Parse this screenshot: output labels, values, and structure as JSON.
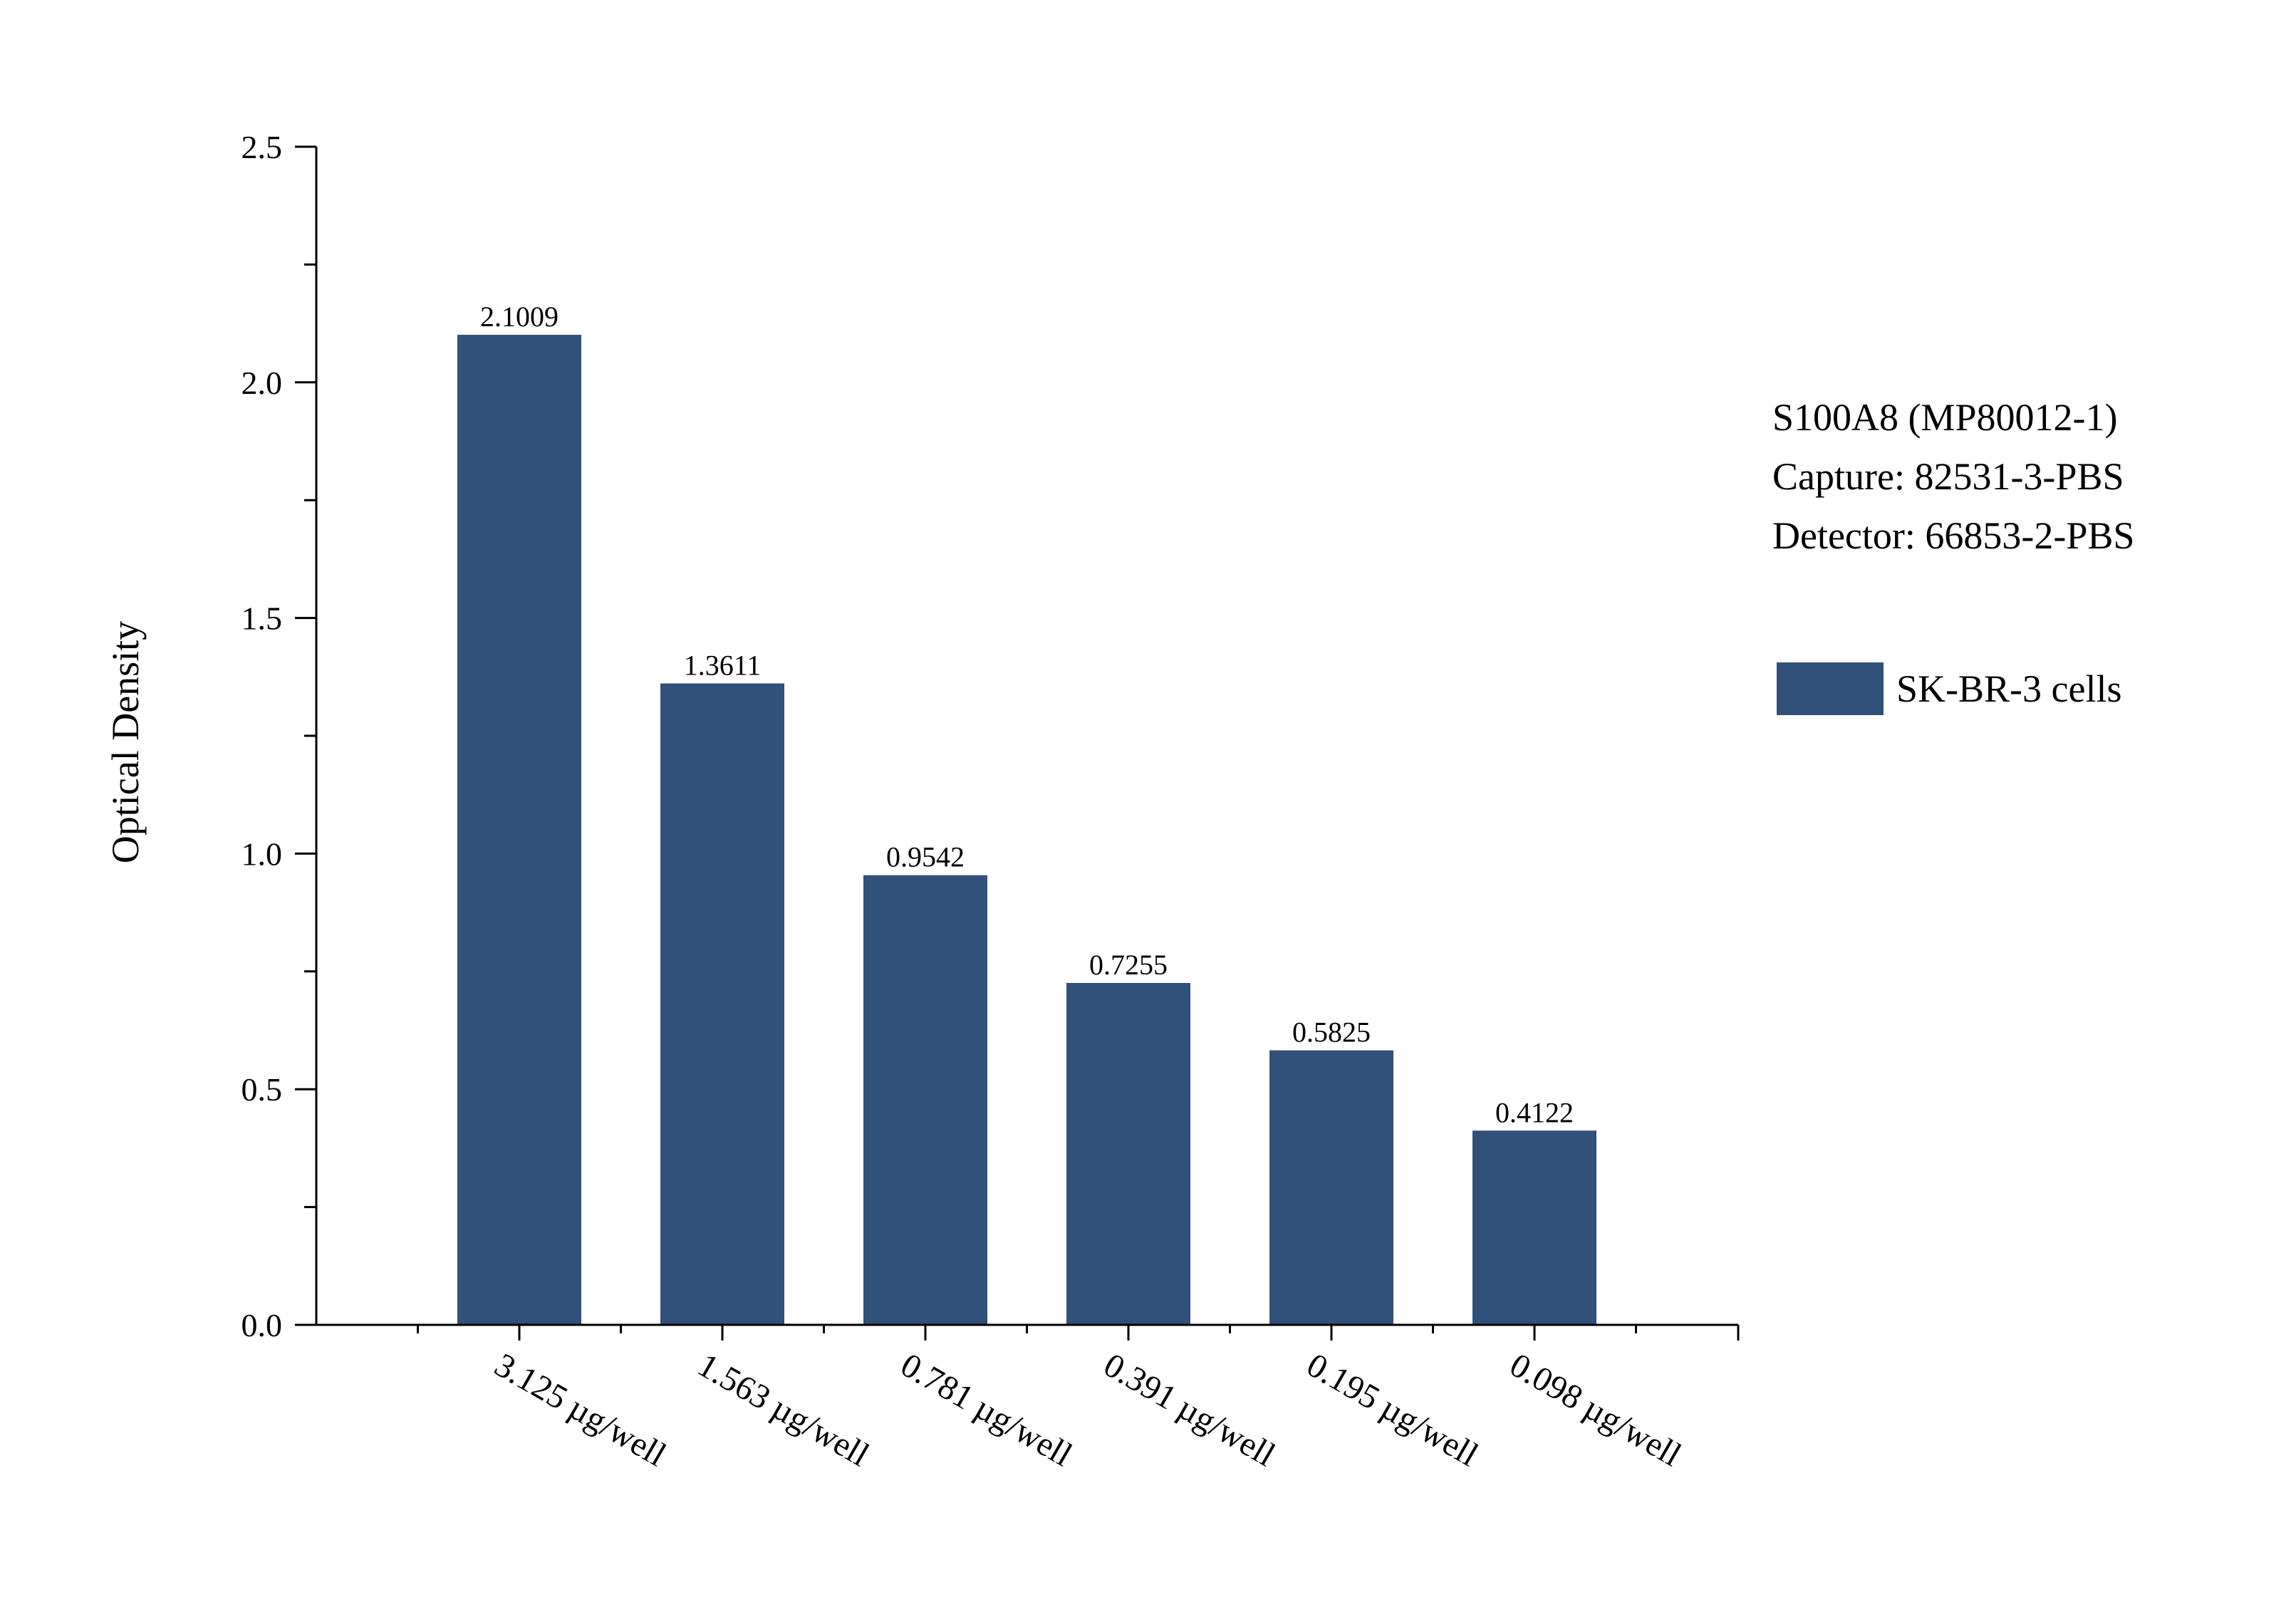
{
  "chart_data": {
    "type": "bar",
    "ylabel": "Optical Density",
    "ylim": [
      0,
      2.5
    ],
    "y_ticks": [
      "0.0",
      "0.5",
      "1.0",
      "1.5",
      "2.0",
      "2.5"
    ],
    "grid": false,
    "legend_position": "right",
    "bar_color": "#31507A",
    "categories": [
      "3.125 µg/well",
      "1.563 µg/well",
      "0.781 µg/well",
      "0.391 µg/well",
      "0.195 µg/well",
      "0.098 µg/well"
    ],
    "series": [
      {
        "name": "SK-BR-3 cells",
        "values": [
          2.1009,
          1.3611,
          0.9542,
          0.7255,
          0.5825,
          0.4122
        ],
        "labels": [
          "2.1009",
          "1.3611",
          "0.9542",
          "0.7255",
          "0.5825",
          "0.4122"
        ]
      }
    ],
    "annotations": [
      "S100A8 (MP80012-1)",
      "Capture: 82531-3-PBS",
      "Detector: 66853-2-PBS"
    ]
  }
}
